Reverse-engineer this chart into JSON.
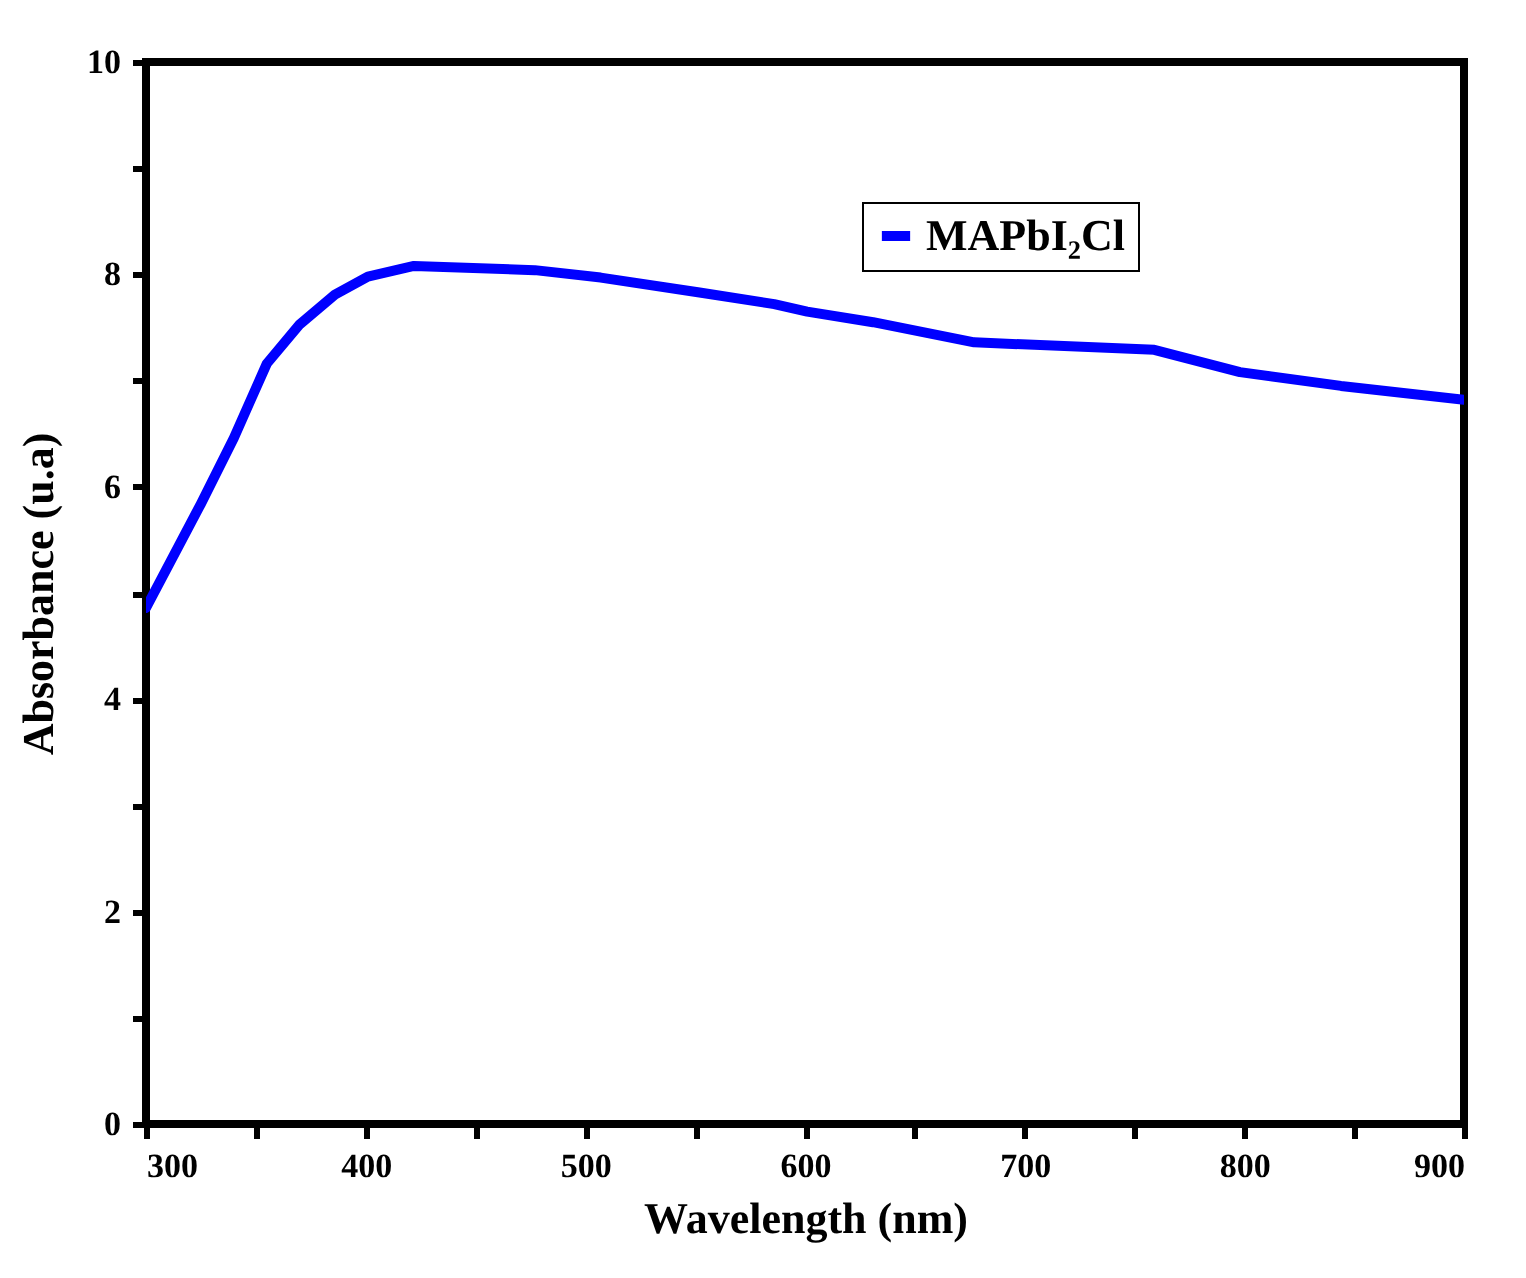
{
  "chart_data": {
    "type": "line",
    "xlabel": "Wavelength (nm)",
    "ylabel": "Absorbance (u.a)",
    "x": [
      300,
      325,
      340,
      355,
      370,
      386,
      401,
      422,
      477,
      507,
      552,
      586,
      601,
      631,
      677,
      759,
      798,
      844,
      900
    ],
    "series": [
      {
        "name": "MAPbI₂Cl",
        "color": "#0000ff",
        "values": [
          4.86,
          5.84,
          6.46,
          7.16,
          7.53,
          7.81,
          7.98,
          8.08,
          8.04,
          7.97,
          7.83,
          7.72,
          7.65,
          7.55,
          7.36,
          7.29,
          7.08,
          6.95,
          6.82
        ]
      }
    ],
    "xlim": [
      300,
      900
    ],
    "xticks": [
      300,
      {
        "value": 350,
        "label": null
      },
      400,
      {
        "value": 450,
        "label": null
      },
      500,
      {
        "value": 550,
        "label": null
      },
      600,
      {
        "value": 650,
        "label": null
      },
      700,
      {
        "value": 750,
        "label": null
      },
      800,
      {
        "value": 850,
        "label": null
      },
      900
    ],
    "ylim": [
      0,
      10
    ],
    "yticks": [
      0,
      {
        "value": 1,
        "label": null
      },
      2,
      {
        "value": 3,
        "label": null
      },
      4,
      {
        "value": 5,
        "label": null
      },
      6,
      {
        "value": 7,
        "label": null
      },
      8,
      {
        "value": 9,
        "label": null
      },
      10
    ],
    "legend": "top right",
    "grid": false,
    "marker": "none",
    "line_style": "solid"
  }
}
